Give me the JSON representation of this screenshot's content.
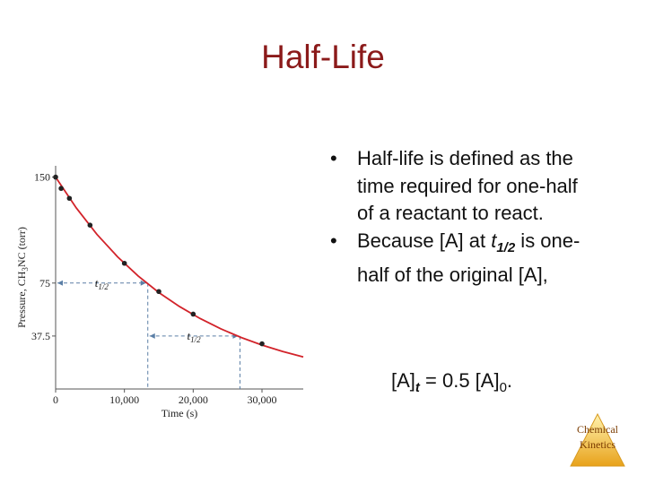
{
  "title": "Half-Life",
  "bullets": [
    [
      {
        "text": "Half-life is defined as the time required for one-half of a reactant to react."
      }
    ],
    [
      {
        "text": "Because [A] at "
      },
      {
        "text": "t",
        "style": "italic"
      },
      {
        "text": "1/2",
        "style": "sub-italic"
      },
      {
        "text": " is one-half of the original [A],"
      }
    ]
  ],
  "equation": [
    {
      "text": "[A]"
    },
    {
      "text": "t",
      "style": "sub-italic"
    },
    {
      "text": " = 0.5 [A]"
    },
    {
      "text": "0",
      "style": "sub"
    },
    {
      "text": "."
    }
  ],
  "logo": [
    "Chemical",
    "Kinetics"
  ],
  "chart_data": {
    "type": "line",
    "x_label": "Time (s)",
    "y_label": [
      "Pressure, CH",
      "3",
      "NC (torr)"
    ],
    "xlim": [
      0,
      36000
    ],
    "ylim": [
      0,
      158
    ],
    "xticks": [
      0,
      {
        "value": 10000,
        "label": "10,000"
      },
      {
        "value": 20000,
        "label": "20,000"
      },
      {
        "value": 30000,
        "label": "30,000"
      }
    ],
    "yticks": [
      37.5,
      75,
      150
    ],
    "series": [
      {
        "name": "curve",
        "color": "#d2232a",
        "x": [
          0,
          3000,
          6000,
          9000,
          12000,
          15000,
          18000,
          21000,
          24000,
          27000,
          30000,
          33000,
          36000
        ],
        "values": [
          150,
          128.2,
          109.5,
          93.6,
          80.0,
          68.3,
          58.4,
          49.9,
          42.6,
          36.4,
          31.1,
          26.6,
          22.7
        ]
      },
      {
        "name": "data",
        "color": "#222222",
        "x": [
          0,
          800,
          2000,
          5000,
          10000,
          15000,
          20000,
          30000
        ],
        "values": [
          150,
          142,
          135,
          116,
          89,
          69,
          53,
          32
        ]
      }
    ],
    "half_life_marks": [
      {
        "from": 0,
        "to": 13400,
        "y": 75,
        "label": "t",
        "sub": "1/2"
      },
      {
        "from": 13400,
        "to": 26800,
        "y": 37.5,
        "label": "t",
        "sub": "1/2"
      }
    ]
  }
}
